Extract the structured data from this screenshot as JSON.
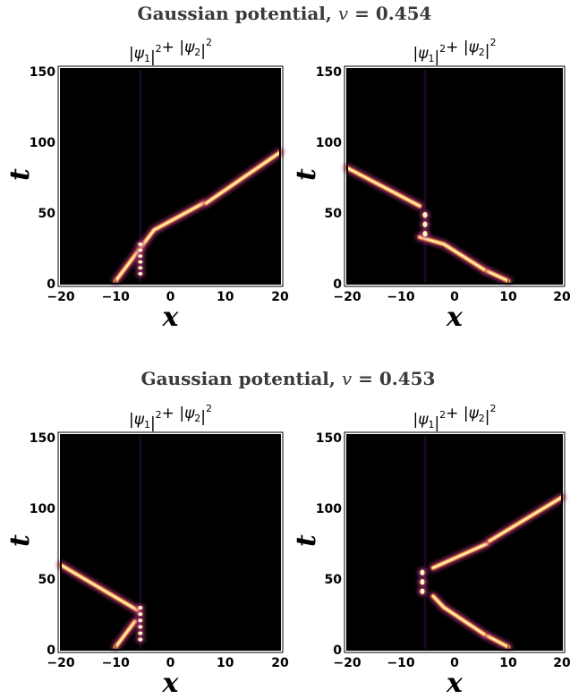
{
  "rows": [
    {
      "title_prefix": "Gaussian potential, ",
      "title_var": "v",
      "title_eq": " = ",
      "title_value": "0.454"
    },
    {
      "title_prefix": "Gaussian potential, ",
      "title_var": "v",
      "title_eq": " = ",
      "title_value": "0.453"
    }
  ],
  "panel_title": {
    "psi": "ψ",
    "sub1": "1",
    "sub2": "2",
    "sup": "2",
    "plus": "+"
  },
  "axis_labels": {
    "x": "x",
    "y": "t"
  },
  "colors": {
    "background": "#000000",
    "hot": "#fcfdbf",
    "mid": "#f98e3a",
    "cool": "#b5367a",
    "dark": "#4a0c6b"
  },
  "chart_data": [
    {
      "type": "heatmap",
      "title": "|ψ1|² + |ψ2|²",
      "xlabel": "x",
      "ylabel": "t",
      "xlim": [
        -20,
        20
      ],
      "ylim": [
        0,
        152
      ],
      "xticks": [
        "-20",
        "-10",
        "0",
        "10",
        "20"
      ],
      "yticks": [
        "0",
        "50",
        "100",
        "150"
      ],
      "blobs": [
        {
          "x": -5.5,
          "t": [
            5,
            30
          ],
          "fringes": 6
        }
      ],
      "tracks": [
        [
          [
            -10,
            2
          ],
          [
            -6.5,
            20
          ],
          [
            -3,
            38
          ],
          [
            6,
            57
          ]
        ],
        [
          [
            6.5,
            57
          ],
          [
            20,
            93
          ]
        ]
      ]
    },
    {
      "type": "heatmap",
      "title": "|ψ1|² + |ψ2|²",
      "xlabel": "x",
      "ylabel": "t",
      "xlim": [
        -20,
        20
      ],
      "ylim": [
        0,
        152
      ],
      "xticks": [
        "-20",
        "-10",
        "0",
        "10",
        "20"
      ],
      "yticks": [
        "0",
        "50",
        "100",
        "150"
      ],
      "blobs": [
        {
          "x": -5.5,
          "t": [
            32,
            52
          ],
          "fringes": 3
        }
      ],
      "tracks": [
        [
          [
            10,
            2
          ],
          [
            6,
            9
          ]
        ],
        [
          [
            5.5,
            10
          ],
          [
            -2,
            28
          ],
          [
            -6.5,
            33
          ]
        ],
        [
          [
            -6.5,
            55
          ],
          [
            -20,
            82
          ]
        ]
      ]
    },
    {
      "type": "heatmap",
      "title": "|ψ1|² + |ψ2|²",
      "xlabel": "x",
      "ylabel": "t",
      "xlim": [
        -20,
        20
      ],
      "ylim": [
        0,
        152
      ],
      "xticks": [
        "-20",
        "-10",
        "0",
        "10",
        "20"
      ],
      "yticks": [
        "0",
        "50",
        "100",
        "150"
      ],
      "blobs": [
        {
          "x": -5.5,
          "t": [
            5,
            32
          ],
          "fringes": 6
        }
      ],
      "tracks": [
        [
          [
            -10,
            2
          ],
          [
            -6.5,
            20
          ]
        ],
        [
          [
            -6,
            28
          ],
          [
            -20,
            60
          ]
        ]
      ]
    },
    {
      "type": "heatmap",
      "title": "|ψ1|² + |ψ2|²",
      "xlabel": "x",
      "ylabel": "t",
      "xlim": [
        -20,
        20
      ],
      "ylim": [
        0,
        152
      ],
      "xticks": [
        "-20",
        "-10",
        "0",
        "10",
        "20"
      ],
      "yticks": [
        "0",
        "50",
        "100",
        "150"
      ],
      "blobs": [
        {
          "x": -6,
          "t": [
            38,
            58
          ],
          "fringes": 3
        }
      ],
      "tracks": [
        [
          [
            10,
            2
          ],
          [
            6,
            10
          ]
        ],
        [
          [
            5.5,
            11
          ],
          [
            -2,
            30
          ],
          [
            -4,
            38
          ]
        ],
        [
          [
            -4,
            58
          ],
          [
            6,
            75
          ]
        ],
        [
          [
            6.5,
            77
          ],
          [
            20,
            108
          ]
        ]
      ]
    }
  ]
}
